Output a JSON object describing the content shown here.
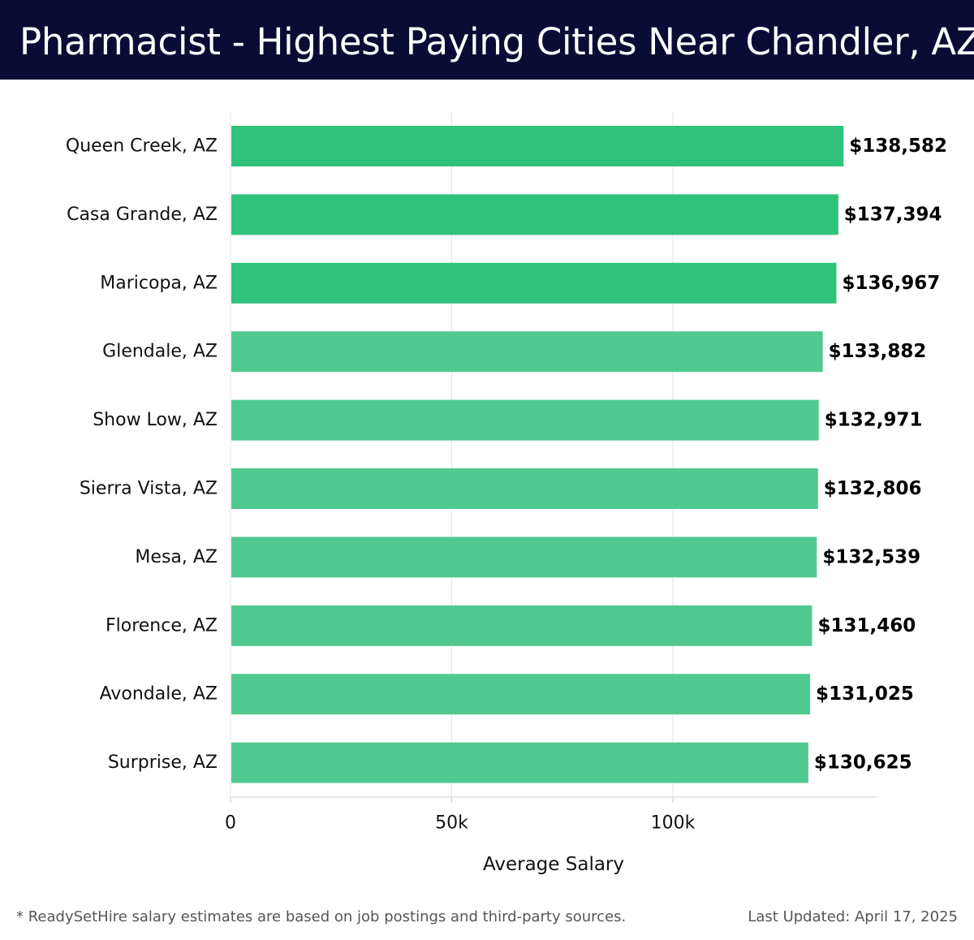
{
  "header": {
    "title": "Pharmacist - Highest Paying Cities Near Chandler, AZ"
  },
  "colors": {
    "header_bg": "#0a0c35",
    "bar_top": "#2ec27b",
    "bar_rest": "#50c990",
    "grid": "#e3e3e3",
    "axis": "#cccccc"
  },
  "chart_data": {
    "type": "bar",
    "orientation": "horizontal",
    "title": "Pharmacist - Highest Paying Cities Near Chandler, AZ",
    "xlabel": "Average Salary",
    "ylabel": "",
    "xlim": [
      0,
      145000
    ],
    "ticks": [
      0,
      50000,
      100000
    ],
    "tick_labels": [
      "0",
      "50k",
      "100k"
    ],
    "grid": true,
    "highlight_top_n": 3,
    "categories": [
      "Queen Creek, AZ",
      "Casa Grande, AZ",
      "Maricopa, AZ",
      "Glendale, AZ",
      "Show Low, AZ",
      "Sierra Vista, AZ",
      "Mesa, AZ",
      "Florence, AZ",
      "Avondale, AZ",
      "Surprise, AZ"
    ],
    "values": [
      138582,
      137394,
      136967,
      133882,
      132971,
      132806,
      132539,
      131460,
      131025,
      130625
    ],
    "value_labels": [
      "$138,582",
      "$137,394",
      "$136,967",
      "$133,882",
      "$132,971",
      "$132,806",
      "$132,539",
      "$131,460",
      "$131,025",
      "$130,625"
    ]
  },
  "footer": {
    "note": "* ReadySetHire salary estimates are based on job postings and third-party sources.",
    "updated": "Last Updated: April 17, 2025"
  }
}
